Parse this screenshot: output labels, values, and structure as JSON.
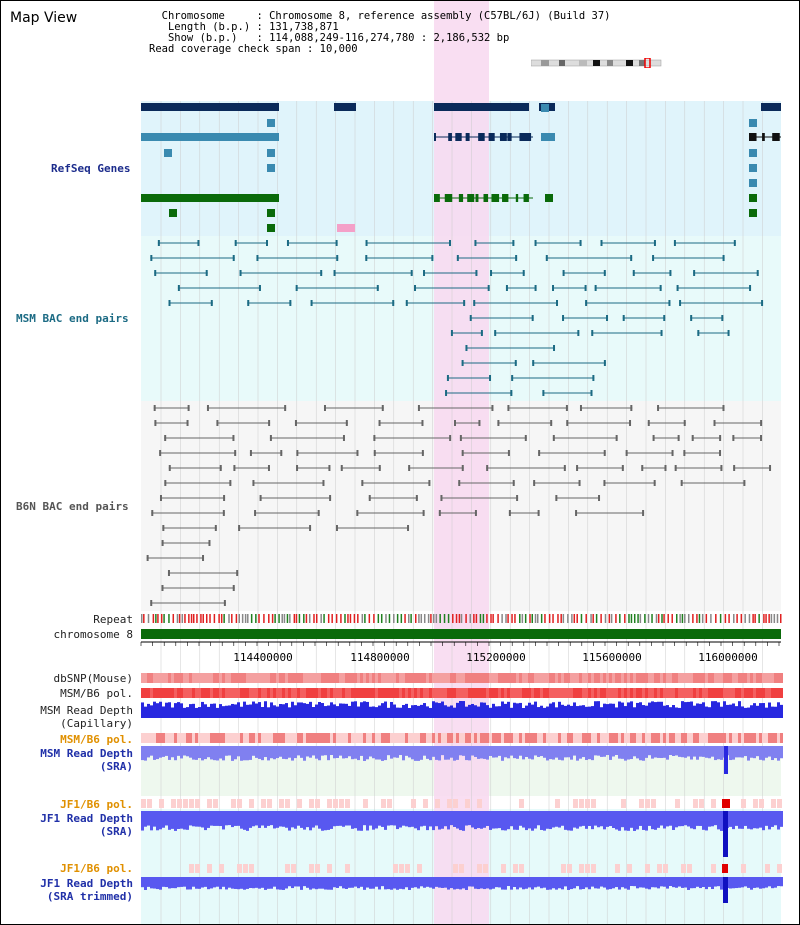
{
  "view": {
    "title": "Map View",
    "info_lines": [
      "  Chromosome     : Chromosome 8, reference assembly (C57BL/6J) (Build 37)",
      "   Length (b.p.) : 131,738,871",
      "   Show (b.p.)   : 114,088,249-116,274,780 : 2,186,532 bp",
      "Read coverage check span : 10,000"
    ]
  },
  "tracks": {
    "refseq": "RefSeq Genes",
    "msm_bac": "MSM BAC end pairs",
    "b6n_bac": "B6N BAC end pairs",
    "repeat": "Repeat",
    "chromosome": "chromosome 8",
    "dbsnp": "dbSNP(Mouse)",
    "msm_b6_pol": "MSM/B6 pol.",
    "msm_depth_cap_1": "MSM Read Depth",
    "msm_depth_cap_2": "(Capillary)",
    "msm_b6_pol_2": "MSM/B6 pol.",
    "msm_depth_sra_1": "MSM Read Depth",
    "msm_depth_sra_2": "(SRA)",
    "jf1_pol": "JF1/B6 pol.",
    "jf1_depth_sra_1": "JF1 Read Depth",
    "jf1_depth_sra_2": "(SRA)",
    "jf1_pol_2": "JF1/B6 pol.",
    "jf1_depth_trim_1": "JF1 Read Depth",
    "jf1_depth_trim_2": "(SRA trimmed)"
  },
  "axis": {
    "ticks": [
      "114400000",
      "114800000",
      "115200000",
      "115600000",
      "116000000"
    ]
  },
  "colors": {
    "highlight": "#f8d8f0",
    "refseq_bg": "#e0f4fb",
    "msm_bg": "#e8fafa",
    "b6n_bg": "#f6f6f6",
    "navy": "#0a2a5a",
    "teal": "#3a8ab0",
    "green": "#0a6a0a",
    "chromosome": "#0a6a0a",
    "read_depth": "#2828e0",
    "sra_depth": "#8080f0",
    "pol_red": "#f04040"
  }
}
